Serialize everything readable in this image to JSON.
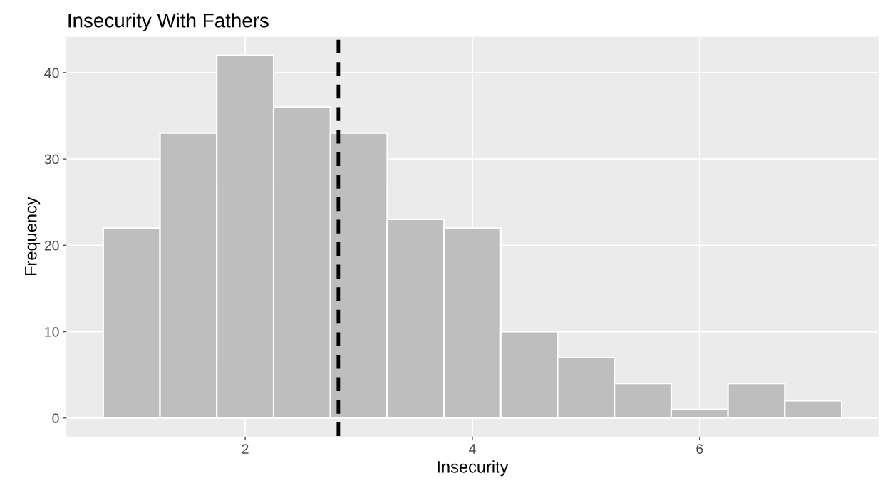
{
  "chart_data": {
    "type": "histogram",
    "title": "Insecurity With Fathers",
    "xlabel": "Insecurity",
    "ylabel": "Frequency",
    "bins": [
      0.75,
      1.25,
      1.75,
      2.25,
      2.75,
      3.25,
      3.75,
      4.25,
      4.75,
      5.25,
      5.75,
      6.25,
      6.75,
      7.25
    ],
    "values": [
      22,
      33,
      42,
      36,
      33,
      23,
      22,
      10,
      7,
      4,
      1,
      4,
      2
    ],
    "color": "#bebebe",
    "xlim": [
      0.43,
      7.57
    ],
    "ylim": [
      -2.1,
      44.1
    ],
    "xticks": [
      2,
      4,
      6
    ],
    "yticks": [
      0,
      10,
      20,
      30,
      40
    ],
    "ref_lines": [
      {
        "axis": "x",
        "value": 2.82,
        "label": null,
        "color": "#000000",
        "line_style": "dashed"
      }
    ],
    "grid": true,
    "legend": false
  }
}
